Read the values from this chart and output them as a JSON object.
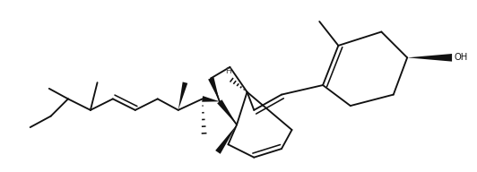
{
  "bg": "#ffffff",
  "lc": "#111111",
  "lw": 1.35,
  "figsize": [
    5.32,
    1.92
  ],
  "dpi": 100
}
